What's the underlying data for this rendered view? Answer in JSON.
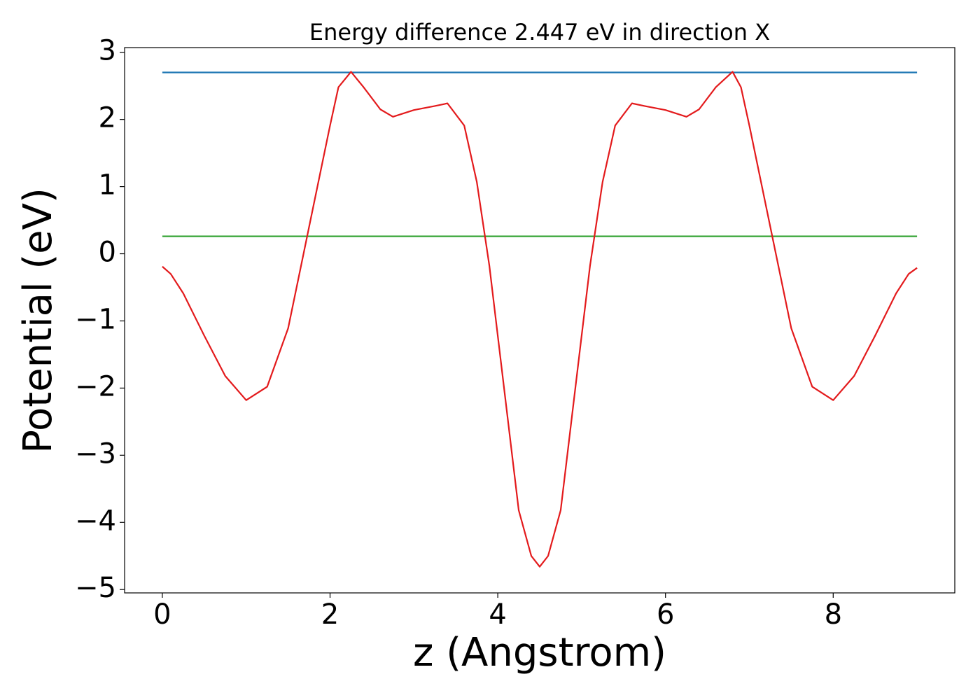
{
  "chart_data": {
    "type": "line",
    "title": "Energy difference 2.447 eV in direction X",
    "xlabel": "z (Angstrom)",
    "ylabel": "Potential (eV)",
    "xlim": [
      -0.45,
      9.45
    ],
    "ylim": [
      -5.05,
      3.07
    ],
    "xticks": [
      0,
      2,
      4,
      6,
      8
    ],
    "yticks": [
      {
        "value": -5,
        "label": "−5"
      },
      {
        "value": -4,
        "label": "−4"
      },
      {
        "value": -3,
        "label": "−3"
      },
      {
        "value": -2,
        "label": "−2"
      },
      {
        "value": -1,
        "label": "−1"
      },
      0,
      1,
      2,
      3
    ],
    "grid": false,
    "series": [
      {
        "color": "#1f77b4",
        "x": [
          0,
          9
        ],
        "values": [
          2.7,
          2.7
        ]
      },
      {
        "color": "#2ca02c",
        "x": [
          0,
          9
        ],
        "values": [
          0.26,
          0.26
        ]
      },
      {
        "color": "#e31a1c",
        "x": [
          0,
          0.1,
          0.25,
          0.5,
          0.75,
          1.0,
          1.25,
          1.5,
          1.75,
          2.0,
          2.1,
          2.25,
          2.4,
          2.6,
          2.75,
          3.0,
          3.25,
          3.4,
          3.6,
          3.75,
          3.9,
          4.0,
          4.25,
          4.4,
          4.5,
          4.6,
          4.75,
          5.0,
          5.1,
          5.25,
          5.4,
          5.6,
          5.75,
          6.0,
          6.25,
          6.4,
          6.6,
          6.8,
          6.9,
          7.0,
          7.25,
          7.5,
          7.75,
          8.0,
          8.25,
          8.5,
          8.75,
          8.9,
          9.0
        ],
        "values": [
          -0.19,
          -0.3,
          -0.59,
          -1.22,
          -1.82,
          -2.18,
          -1.98,
          -1.11,
          0.4,
          1.91,
          2.48,
          2.71,
          2.48,
          2.15,
          2.04,
          2.14,
          2.2,
          2.24,
          1.91,
          1.07,
          -0.18,
          -1.22,
          -3.82,
          -4.5,
          -4.66,
          -4.5,
          -3.82,
          -1.22,
          -0.18,
          1.07,
          1.91,
          2.24,
          2.2,
          2.14,
          2.04,
          2.15,
          2.48,
          2.71,
          2.48,
          1.91,
          0.4,
          -1.11,
          -1.98,
          -2.18,
          -1.82,
          -1.22,
          -0.59,
          -0.3,
          -0.21
        ]
      }
    ]
  }
}
